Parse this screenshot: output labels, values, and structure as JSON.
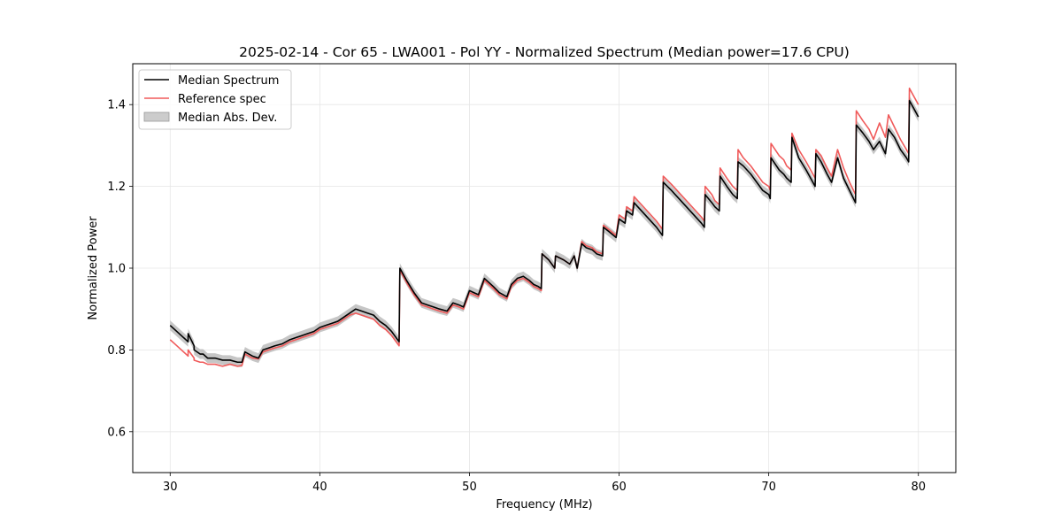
{
  "chart_data": {
    "type": "line",
    "title": "2025-02-14 - Cor 65 - LWA001 - Pol YY - Normalized Spectrum (Median power=17.6 CPU)",
    "xlabel": "Frequency (MHz)",
    "ylabel": "Normalized Power",
    "xlim": [
      27.5,
      82.5
    ],
    "ylim": [
      0.5,
      1.5
    ],
    "xticks": [
      30,
      40,
      50,
      60,
      70,
      80
    ],
    "yticks": [
      0.6,
      0.8,
      1.0,
      1.2,
      1.4
    ],
    "xtick_labels": [
      "30",
      "40",
      "50",
      "60",
      "70",
      "80"
    ],
    "ytick_labels": [
      "0.6",
      "0.8",
      "1.0",
      "1.2",
      "1.4"
    ],
    "grid": true,
    "legend_position": "top-left",
    "legend": [
      "Median Spectrum",
      "Reference spec",
      "Median Abs. Dev."
    ],
    "colors": {
      "median": "#000000",
      "reference": "#f05a5a",
      "mad": "#b3b3b3"
    },
    "mad_halfwidth": 0.012,
    "series": [
      {
        "name": "Median Spectrum",
        "x": [
          30.0,
          30.3,
          30.6,
          30.9,
          31.2,
          31.2,
          31.6,
          31.6,
          32.0,
          32.2,
          32.5,
          33.0,
          33.5,
          34.0,
          34.5,
          34.8,
          35.0,
          35.5,
          35.9,
          36.2,
          36.6,
          37.0,
          37.5,
          38.0,
          38.4,
          38.8,
          39.2,
          39.6,
          40.0,
          40.4,
          40.8,
          41.2,
          41.6,
          42.0,
          42.4,
          42.8,
          43.2,
          43.6,
          44.0,
          44.4,
          44.8,
          45.3,
          45.35,
          45.8,
          46.3,
          46.8,
          47.2,
          47.6,
          48.0,
          48.5,
          48.9,
          49.3,
          49.6,
          50.0,
          50.3,
          50.6,
          51.0,
          51.3,
          51.6,
          52.0,
          52.5,
          52.8,
          53.2,
          53.6,
          54.0,
          54.3,
          54.6,
          54.8,
          54.85,
          55.3,
          55.7,
          55.75,
          56.3,
          56.7,
          57.0,
          57.2,
          57.5,
          57.8,
          58.2,
          58.5,
          58.9,
          58.95,
          59.3,
          59.8,
          60.0,
          60.4,
          60.5,
          60.9,
          61.0,
          61.5,
          62.0,
          62.5,
          62.9,
          62.95,
          63.5,
          64.0,
          64.5,
          65.0,
          65.5,
          65.7,
          65.75,
          66.2,
          66.4,
          66.7,
          66.75,
          67.2,
          67.6,
          67.9,
          67.95,
          68.3,
          68.8,
          69.2,
          69.6,
          70.0,
          70.1,
          70.15,
          70.7,
          71.0,
          71.2,
          71.5,
          71.55,
          72.0,
          72.5,
          72.8,
          73.1,
          73.15,
          73.5,
          73.9,
          74.2,
          74.6,
          75.0,
          75.4,
          75.8,
          75.85,
          76.3,
          76.7,
          77.0,
          77.4,
          77.8,
          78.0,
          78.4,
          78.8,
          79.2,
          79.35,
          79.4,
          79.7,
          80.0
        ],
        "values": [
          0.86,
          0.85,
          0.84,
          0.83,
          0.82,
          0.84,
          0.81,
          0.8,
          0.79,
          0.79,
          0.78,
          0.78,
          0.775,
          0.775,
          0.77,
          0.77,
          0.795,
          0.785,
          0.78,
          0.8,
          0.805,
          0.81,
          0.815,
          0.825,
          0.83,
          0.835,
          0.84,
          0.845,
          0.855,
          0.86,
          0.865,
          0.87,
          0.88,
          0.89,
          0.9,
          0.895,
          0.89,
          0.885,
          0.87,
          0.86,
          0.845,
          0.82,
          1.0,
          0.97,
          0.94,
          0.915,
          0.91,
          0.905,
          0.9,
          0.895,
          0.915,
          0.91,
          0.905,
          0.945,
          0.94,
          0.935,
          0.975,
          0.965,
          0.955,
          0.94,
          0.93,
          0.96,
          0.975,
          0.98,
          0.97,
          0.96,
          0.955,
          0.95,
          1.035,
          1.02,
          1.0,
          1.03,
          1.02,
          1.01,
          1.03,
          1.0,
          1.06,
          1.05,
          1.045,
          1.035,
          1.03,
          1.1,
          1.09,
          1.075,
          1.12,
          1.11,
          1.14,
          1.13,
          1.16,
          1.14,
          1.12,
          1.1,
          1.08,
          1.21,
          1.19,
          1.17,
          1.15,
          1.13,
          1.11,
          1.1,
          1.18,
          1.16,
          1.15,
          1.14,
          1.225,
          1.2,
          1.18,
          1.17,
          1.26,
          1.25,
          1.23,
          1.21,
          1.19,
          1.18,
          1.17,
          1.27,
          1.24,
          1.23,
          1.22,
          1.21,
          1.32,
          1.27,
          1.24,
          1.22,
          1.2,
          1.28,
          1.26,
          1.23,
          1.21,
          1.27,
          1.22,
          1.19,
          1.16,
          1.35,
          1.33,
          1.31,
          1.29,
          1.31,
          1.28,
          1.34,
          1.32,
          1.29,
          1.27,
          1.26,
          1.41,
          1.39,
          1.37
        ]
      },
      {
        "name": "Reference spec",
        "x": [
          30.0,
          30.3,
          30.6,
          30.9,
          31.2,
          31.2,
          31.6,
          31.6,
          32.0,
          32.2,
          32.5,
          33.0,
          33.5,
          34.0,
          34.5,
          34.8,
          35.0,
          35.5,
          35.9,
          36.2,
          36.6,
          37.0,
          37.5,
          38.0,
          38.4,
          38.8,
          39.2,
          39.6,
          40.0,
          40.4,
          40.8,
          41.2,
          41.6,
          42.0,
          42.4,
          42.8,
          43.2,
          43.6,
          44.0,
          44.4,
          44.8,
          45.3,
          45.35,
          45.8,
          46.3,
          46.8,
          47.2,
          47.6,
          48.0,
          48.5,
          48.9,
          49.3,
          49.6,
          50.0,
          50.3,
          50.6,
          51.0,
          51.3,
          51.6,
          52.0,
          52.5,
          52.8,
          53.2,
          53.6,
          54.0,
          54.3,
          54.6,
          54.8,
          54.85,
          55.3,
          55.7,
          55.75,
          56.3,
          56.7,
          57.0,
          57.2,
          57.5,
          57.8,
          58.2,
          58.5,
          58.9,
          58.95,
          59.3,
          59.8,
          60.0,
          60.4,
          60.5,
          60.9,
          61.0,
          61.5,
          62.0,
          62.5,
          62.9,
          62.95,
          63.5,
          64.0,
          64.5,
          65.0,
          65.5,
          65.7,
          65.75,
          66.2,
          66.4,
          66.7,
          66.75,
          67.2,
          67.6,
          67.9,
          67.95,
          68.3,
          68.8,
          69.2,
          69.6,
          70.0,
          70.1,
          70.15,
          70.7,
          71.0,
          71.2,
          71.5,
          71.55,
          72.0,
          72.5,
          72.8,
          73.1,
          73.15,
          73.5,
          73.9,
          74.2,
          74.6,
          75.0,
          75.4,
          75.8,
          75.85,
          76.3,
          76.7,
          77.0,
          77.4,
          77.8,
          78.0,
          78.4,
          78.8,
          79.2,
          79.35,
          79.4,
          79.7,
          80.0
        ],
        "values": [
          0.825,
          0.815,
          0.805,
          0.795,
          0.785,
          0.8,
          0.78,
          0.775,
          0.77,
          0.77,
          0.765,
          0.765,
          0.76,
          0.765,
          0.76,
          0.762,
          0.79,
          0.78,
          0.778,
          0.795,
          0.8,
          0.805,
          0.81,
          0.82,
          0.825,
          0.83,
          0.835,
          0.84,
          0.85,
          0.855,
          0.86,
          0.865,
          0.875,
          0.885,
          0.89,
          0.885,
          0.88,
          0.875,
          0.86,
          0.85,
          0.835,
          0.81,
          0.995,
          0.965,
          0.935,
          0.91,
          0.905,
          0.9,
          0.895,
          0.89,
          0.91,
          0.905,
          0.9,
          0.94,
          0.935,
          0.93,
          0.97,
          0.96,
          0.95,
          0.935,
          0.925,
          0.955,
          0.97,
          0.975,
          0.965,
          0.955,
          0.95,
          0.945,
          1.035,
          1.02,
          1.0,
          1.03,
          1.02,
          1.01,
          1.03,
          1.0,
          1.065,
          1.055,
          1.05,
          1.04,
          1.035,
          1.105,
          1.095,
          1.08,
          1.13,
          1.12,
          1.15,
          1.14,
          1.175,
          1.155,
          1.135,
          1.115,
          1.095,
          1.225,
          1.205,
          1.185,
          1.165,
          1.145,
          1.125,
          1.115,
          1.2,
          1.18,
          1.165,
          1.155,
          1.245,
          1.22,
          1.2,
          1.19,
          1.29,
          1.27,
          1.25,
          1.23,
          1.21,
          1.2,
          1.19,
          1.305,
          1.275,
          1.265,
          1.25,
          1.24,
          1.33,
          1.29,
          1.26,
          1.24,
          1.22,
          1.29,
          1.275,
          1.245,
          1.225,
          1.29,
          1.245,
          1.21,
          1.18,
          1.385,
          1.36,
          1.34,
          1.315,
          1.355,
          1.32,
          1.375,
          1.345,
          1.315,
          1.29,
          1.28,
          1.44,
          1.42,
          1.4
        ]
      }
    ]
  }
}
